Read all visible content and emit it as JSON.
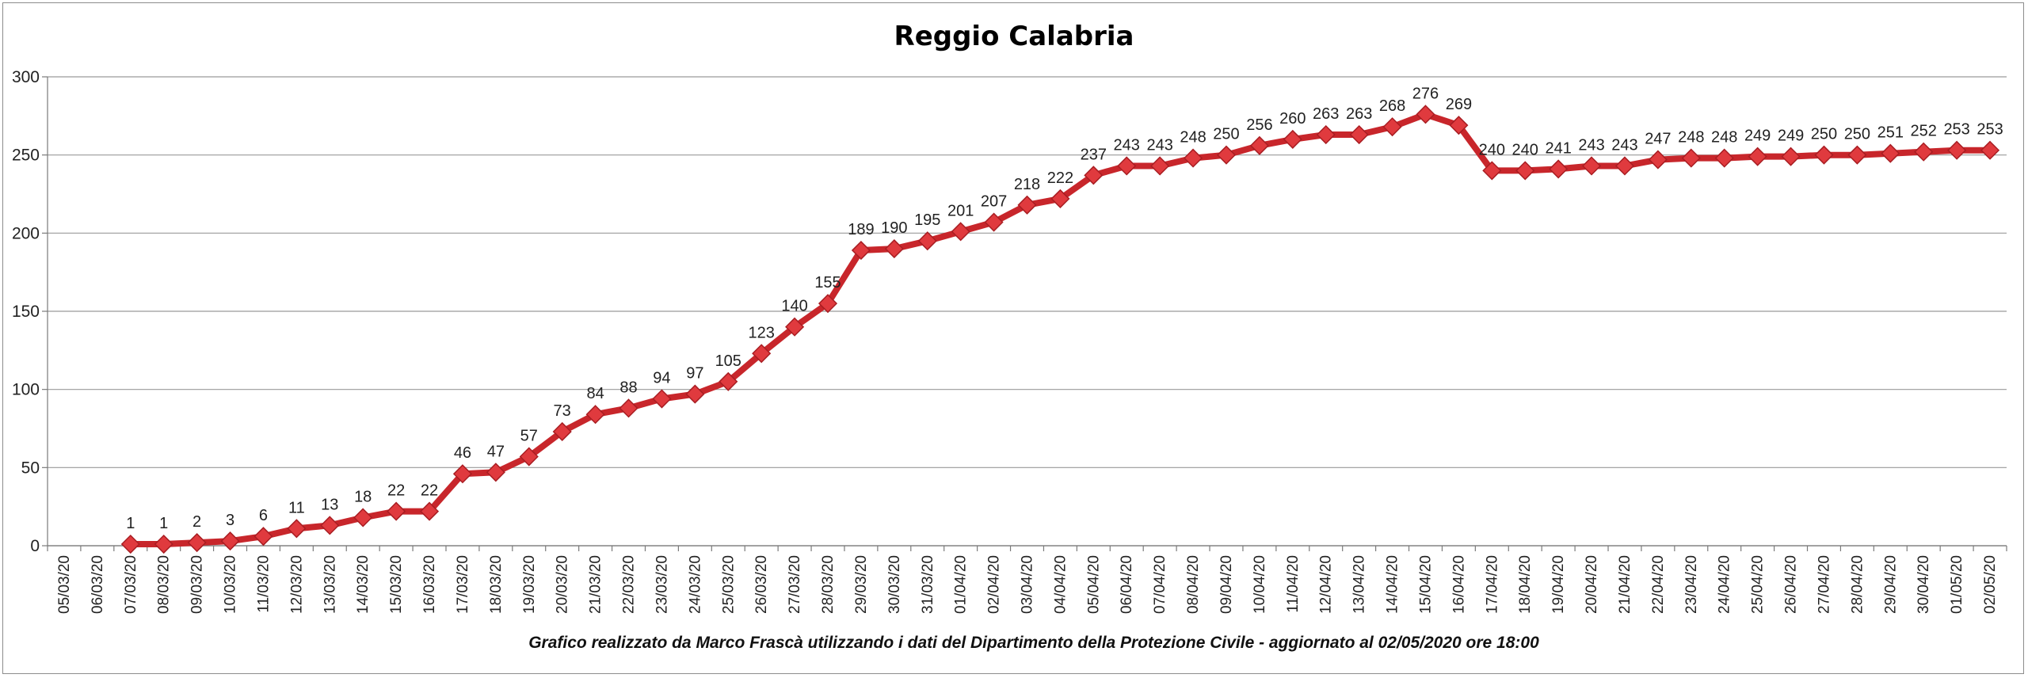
{
  "chart_data": {
    "type": "line",
    "title": "Reggio Calabria",
    "footer": "Grafico  realizzato da Marco Frascà  utilizzando i dati del Dipartimento  della Protezione Civile - aggiornato al 02/05/2020 ore 18:00",
    "ylim": [
      0,
      300
    ],
    "yticks": [
      0,
      50,
      100,
      150,
      200,
      250,
      300
    ],
    "grid": true,
    "legend": "none",
    "colors": {
      "line": "#c8262b",
      "marker": "#e03a3e",
      "grid": "#9a9a9a"
    },
    "categories": [
      "05/03/20",
      "06/03/20",
      "07/03/20",
      "08/03/20",
      "09/03/20",
      "10/03/20",
      "11/03/20",
      "12/03/20",
      "13/03/20",
      "14/03/20",
      "15/03/20",
      "16/03/20",
      "17/03/20",
      "18/03/20",
      "19/03/20",
      "20/03/20",
      "21/03/20",
      "22/03/20",
      "23/03/20",
      "24/03/20",
      "25/03/20",
      "26/03/20",
      "27/03/20",
      "28/03/20",
      "29/03/20",
      "30/03/20",
      "31/03/20",
      "01/04/20",
      "02/04/20",
      "03/04/20",
      "04/04/20",
      "05/04/20",
      "06/04/20",
      "07/04/20",
      "08/04/20",
      "09/04/20",
      "10/04/20",
      "11/04/20",
      "12/04/20",
      "13/04/20",
      "14/04/20",
      "15/04/20",
      "16/04/20",
      "17/04/20",
      "18/04/20",
      "19/04/20",
      "20/04/20",
      "21/04/20",
      "22/04/20",
      "23/04/20",
      "24/04/20",
      "25/04/20",
      "26/04/20",
      "27/04/20",
      "28/04/20",
      "29/04/20",
      "30/04/20",
      "01/05/20",
      "02/05/20"
    ],
    "series": [
      {
        "values": [
          null,
          null,
          1,
          1,
          2,
          3,
          6,
          11,
          13,
          18,
          22,
          22,
          46,
          47,
          57,
          73,
          84,
          88,
          94,
          97,
          105,
          123,
          140,
          155,
          189,
          190,
          195,
          201,
          207,
          218,
          222,
          237,
          243,
          243,
          248,
          250,
          256,
          260,
          263,
          263,
          268,
          276,
          269,
          240,
          240,
          241,
          243,
          243,
          247,
          248,
          248,
          249,
          249,
          250,
          250,
          251,
          252,
          253,
          253
        ]
      }
    ]
  }
}
